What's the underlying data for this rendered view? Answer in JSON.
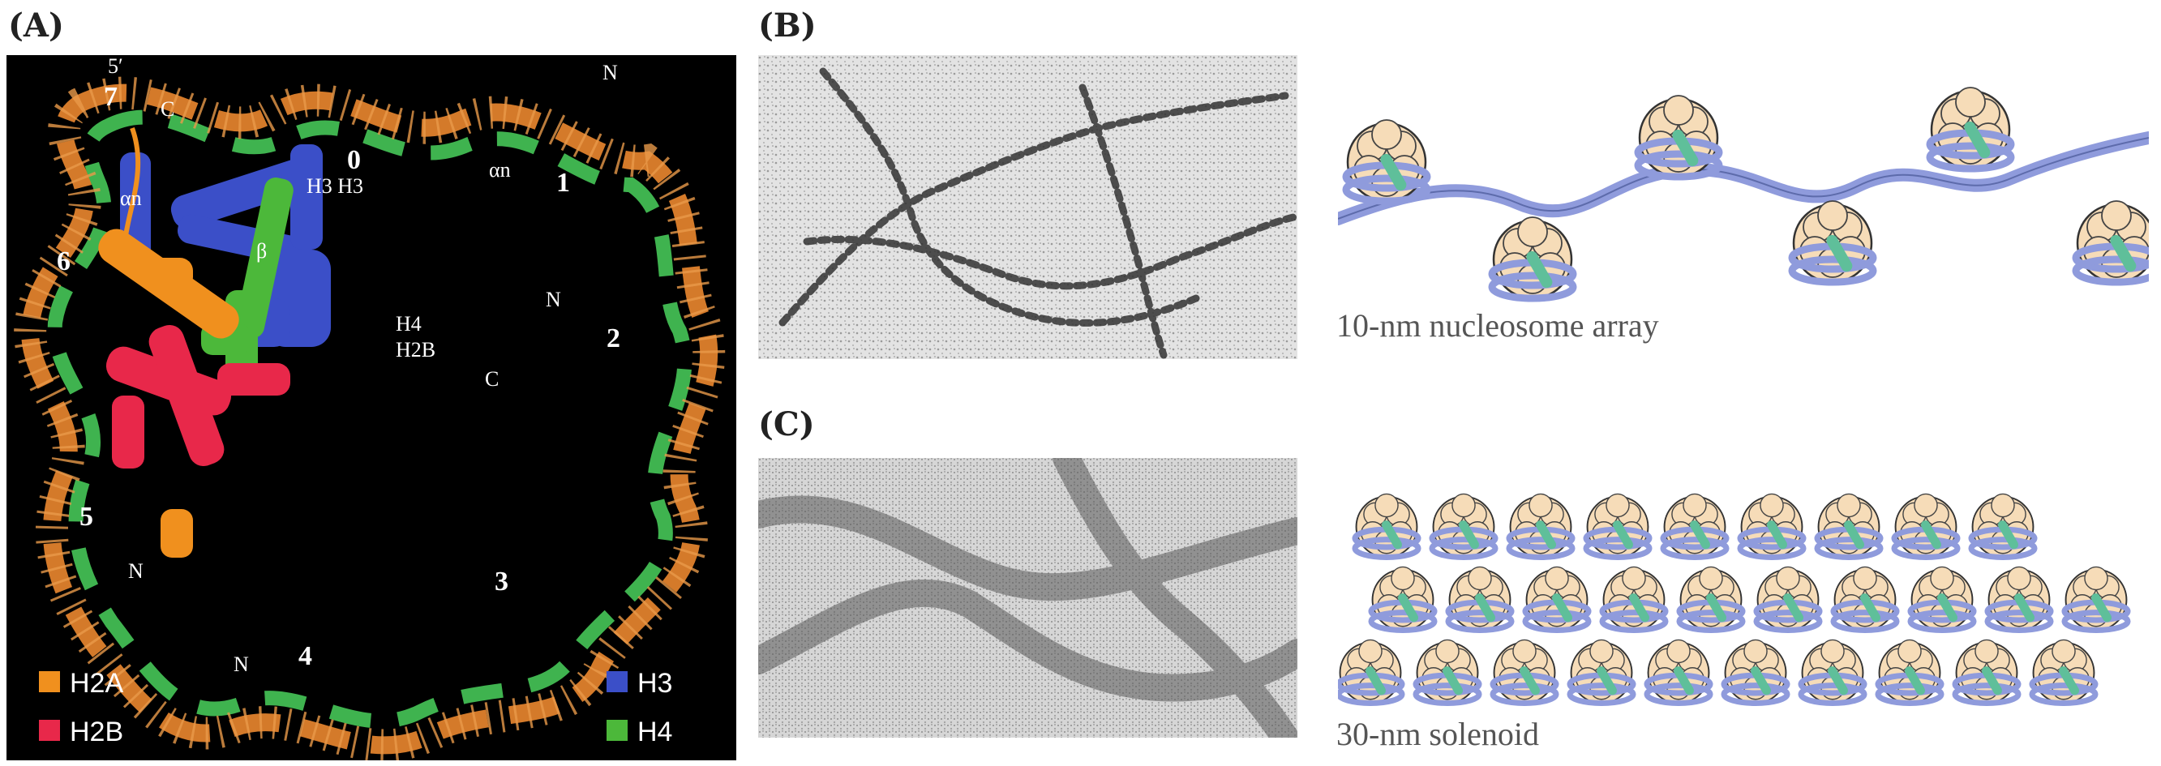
{
  "panels": {
    "a": {
      "label": "(A)",
      "dna_positions": [
        "0",
        "1",
        "2",
        "3",
        "4",
        "5",
        "6",
        "7"
      ],
      "strand_end": "5′",
      "termini": {
        "n": "N",
        "c": "C"
      },
      "helix_label": "αn",
      "structure_labels": {
        "h3_pair": "H3 H3",
        "h4": "H4",
        "h2b": "H2B",
        "beta": "β"
      },
      "legend": [
        {
          "label": "H2A",
          "color": "#f0901e"
        },
        {
          "label": "H2B",
          "color": "#e8284a"
        },
        {
          "label": "H3",
          "color": "#3b4fc8"
        },
        {
          "label": "H4",
          "color": "#4cb83a"
        }
      ]
    },
    "b": {
      "label": "(B)"
    },
    "c": {
      "label": "(C)"
    }
  },
  "captions": {
    "array": "10-nm nucleosome array",
    "solenoid": "30-nm solenoid"
  },
  "colors": {
    "dna_orange": "#d47a2a",
    "dna_green": "#3fb34f",
    "linker_dna": "#8f9bdc",
    "histone_core": "#f6dcb8",
    "histone_h1": "#5fbf9a"
  }
}
